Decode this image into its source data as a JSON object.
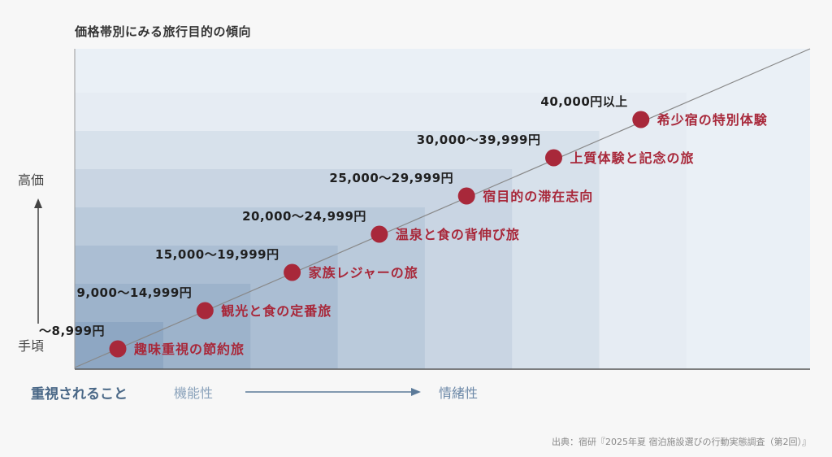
{
  "title": "価格帯別にみる旅行目的の傾向",
  "y_axis": {
    "high_label": "高価",
    "low_label": "手頃"
  },
  "x_axis": {
    "lead_label": "重視されること",
    "start_label": "機能性",
    "end_label": "情緒性"
  },
  "source": "出典：宿研『2025年夏 宿泊施設選びの行動実態調査（第2回）』",
  "colors": {
    "point": "#a8283a",
    "price_text": "#1f1f1f",
    "purpose_text": "#a8283a",
    "line": "#888888",
    "band_light": "#e6ecf3",
    "band_dark": "#8ea7c3"
  },
  "chart_data": {
    "type": "scatter",
    "title": "価格帯別にみる旅行目的の傾向",
    "ylabel_high": "高価",
    "ylabel_low": "手頃",
    "xlabel": "重視されること 機能性 → 情緒性",
    "points": [
      {
        "rank": 1,
        "price": "〜8,999円",
        "purpose": "趣味重視の節約旅"
      },
      {
        "rank": 2,
        "price": "9,000〜14,999円",
        "purpose": "観光と食の定番旅"
      },
      {
        "rank": 3,
        "price": "15,000〜19,999円",
        "purpose": "家族レジャーの旅"
      },
      {
        "rank": 4,
        "price": "20,000〜24,999円",
        "purpose": "温泉と食の背伸び旅"
      },
      {
        "rank": 5,
        "price": "25,000〜29,999円",
        "purpose": "宿目的の滞在志向"
      },
      {
        "rank": 6,
        "price": "30,000〜39,999円",
        "purpose": "上質体験と記念の旅"
      },
      {
        "rank": 7,
        "price": "40,000円以上",
        "purpose": "希少宿の特別体験"
      }
    ]
  }
}
